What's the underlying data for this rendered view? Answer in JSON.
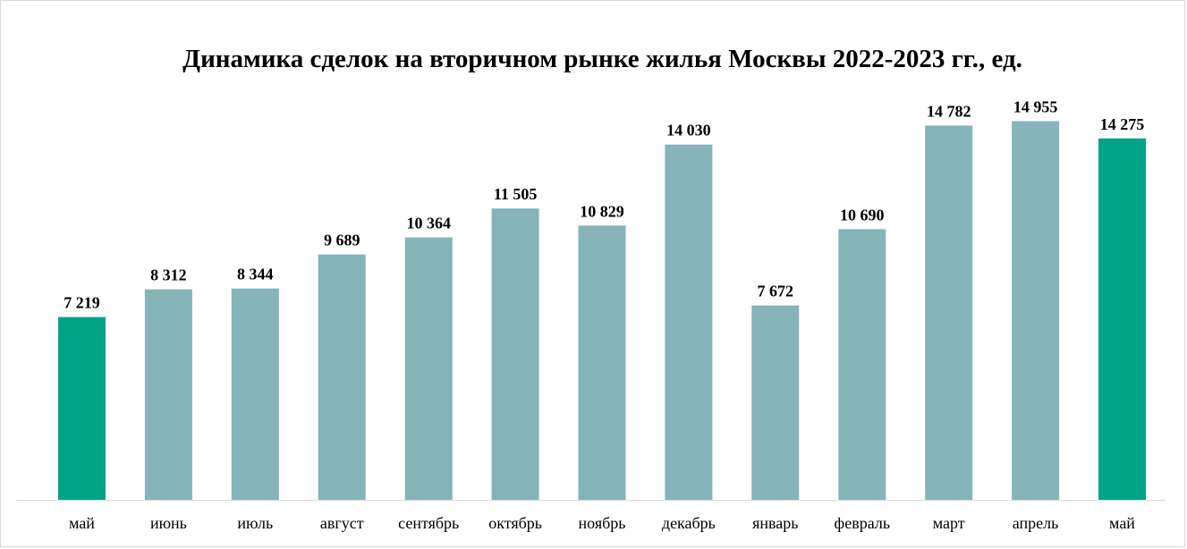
{
  "chart_data": {
    "type": "bar",
    "title": "Динамика сделок на вторичном рынке жилья Москвы 2022-2023 гг., ед.",
    "categories": [
      "май",
      "июнь",
      "июль",
      "август",
      "сентябрь",
      "октябрь",
      "ноябрь",
      "декабрь",
      "январь",
      "февраль",
      "март",
      "апрель",
      "май"
    ],
    "values": [
      7219,
      8312,
      8344,
      9689,
      10364,
      11505,
      10829,
      14030,
      7672,
      10690,
      14782,
      14955,
      14275
    ],
    "value_labels": [
      "7 219",
      "8 312",
      "8 344",
      "9 689",
      "10 364",
      "11 505",
      "10 829",
      "14 030",
      "7 672",
      "10 690",
      "14 782",
      "14 955",
      "14 275"
    ],
    "highlighted": [
      0,
      12
    ],
    "ylim": [
      0,
      16000
    ],
    "grid": false,
    "colors": {
      "bar": "#85b4b9",
      "highlight": "#00a386",
      "axis": "#d9d9d9"
    }
  }
}
